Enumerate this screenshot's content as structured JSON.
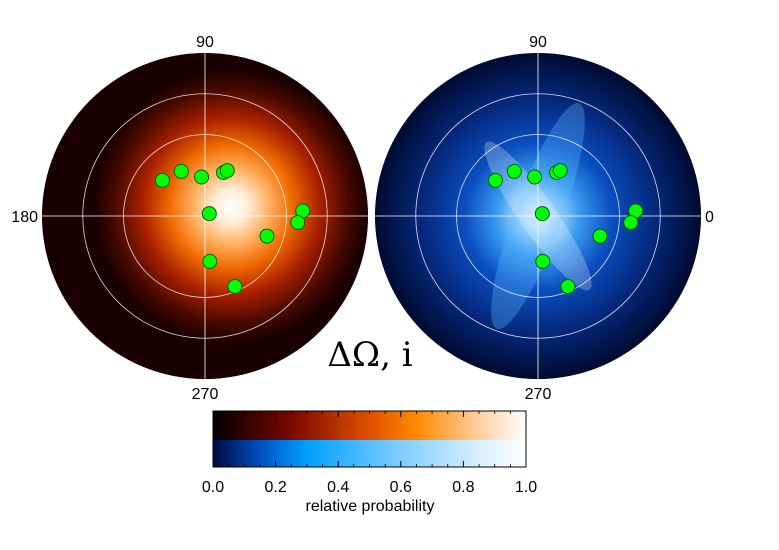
{
  "chart_data": {
    "type": "polar-heatmap",
    "title": "ΔΩ, i",
    "panels": [
      {
        "name": "",
        "colormap": "red-temperature",
        "angle_labels": [
          "90",
          "180",
          "270"
        ],
        "peak": {
          "angle_deg": 15,
          "radius_frac": 0.18
        },
        "points": [
          {
            "angle_deg": 140,
            "radius_frac": 0.34
          },
          {
            "angle_deg": 118,
            "radius_frac": 0.31
          },
          {
            "angle_deg": 95,
            "radius_frac": 0.24
          },
          {
            "angle_deg": 67,
            "radius_frac": 0.29
          },
          {
            "angle_deg": 64,
            "radius_frac": 0.31
          },
          {
            "angle_deg": 29,
            "radius_frac": 0.03
          },
          {
            "angle_deg": 3,
            "radius_frac": 0.6
          },
          {
            "angle_deg": -4,
            "radius_frac": 0.57
          },
          {
            "angle_deg": -18,
            "radius_frac": 0.4
          },
          {
            "angle_deg": -84,
            "radius_frac": 0.28
          },
          {
            "angle_deg": -67,
            "radius_frac": 0.47
          }
        ]
      },
      {
        "name": "",
        "colormap": "blue-temperature",
        "angle_labels": [
          "90",
          "0",
          "270"
        ],
        "peak": {
          "angle_deg": 0,
          "radius_frac": 0.0
        },
        "points": [
          {
            "angle_deg": 140,
            "radius_frac": 0.34
          },
          {
            "angle_deg": 118,
            "radius_frac": 0.31
          },
          {
            "angle_deg": 95,
            "radius_frac": 0.24
          },
          {
            "angle_deg": 67,
            "radius_frac": 0.29
          },
          {
            "angle_deg": 64,
            "radius_frac": 0.31
          },
          {
            "angle_deg": 29,
            "radius_frac": 0.03
          },
          {
            "angle_deg": 3,
            "radius_frac": 0.6
          },
          {
            "angle_deg": -4,
            "radius_frac": 0.57
          },
          {
            "angle_deg": -18,
            "radius_frac": 0.4
          },
          {
            "angle_deg": -84,
            "radius_frac": 0.28
          },
          {
            "angle_deg": -67,
            "radius_frac": 0.47
          }
        ]
      }
    ],
    "rings_frac": [
      0.5,
      0.75
    ],
    "grid": true,
    "marker_color": "#00ff00",
    "colorbar": {
      "label": "relative probability",
      "ticks": [
        "0.0",
        "0.2",
        "0.4",
        "0.6",
        "0.8",
        "1.0"
      ],
      "range": [
        0,
        1
      ]
    }
  }
}
